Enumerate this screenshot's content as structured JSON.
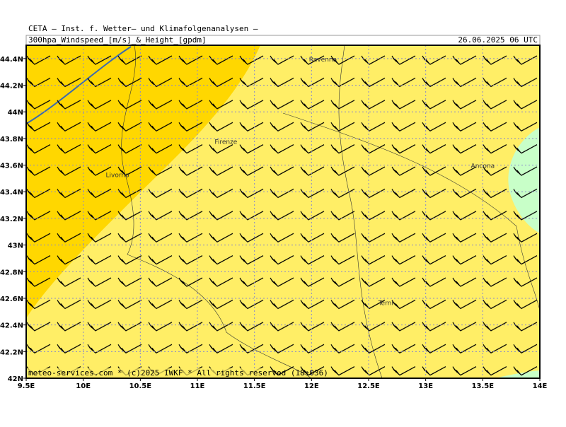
{
  "header": {
    "title": "CETA — Inst. f. Wetter— und Klimafolgenanalysen —",
    "product": "300hpa_Windspeed_[m/s]_&_Height_[gpdm]",
    "valid": "26.06.2025 06 UTC"
  },
  "map": {
    "xlim": [
      9.5,
      14
    ],
    "ylim": [
      42,
      44.5
    ],
    "xticks": [
      {
        "value": 9.5,
        "label": "9.5E"
      },
      {
        "value": 10,
        "label": "10E"
      },
      {
        "value": 10.5,
        "label": "10.5E"
      },
      {
        "value": 11,
        "label": "11E"
      },
      {
        "value": 11.5,
        "label": "11.5E"
      },
      {
        "value": 12,
        "label": "12E"
      },
      {
        "value": 12.5,
        "label": "12.5E"
      },
      {
        "value": 13,
        "label": "13E"
      },
      {
        "value": 13.5,
        "label": "13.5E"
      },
      {
        "value": 14,
        "label": "14E"
      }
    ],
    "yticks": [
      {
        "value": 42,
        "label": "42N"
      },
      {
        "value": 42.2,
        "label": "42.2N"
      },
      {
        "value": 42.4,
        "label": "42.4N"
      },
      {
        "value": 42.6,
        "label": "42.6N"
      },
      {
        "value": 42.8,
        "label": "42.8N"
      },
      {
        "value": 43,
        "label": "43N"
      },
      {
        "value": 43.2,
        "label": "43.2N"
      },
      {
        "value": 43.4,
        "label": "43.4N"
      },
      {
        "value": 43.6,
        "label": "43.6N"
      },
      {
        "value": 43.8,
        "label": "43.8N"
      },
      {
        "value": 44,
        "label": "44N"
      },
      {
        "value": 44.2,
        "label": "44.2N"
      },
      {
        "value": 44.4,
        "label": "44.4N"
      }
    ],
    "cities": [
      {
        "name": "Ravenna",
        "lon": 12.1,
        "lat": 44.4
      },
      {
        "name": "Firenze",
        "lon": 11.25,
        "lat": 43.78
      },
      {
        "name": "Livorno",
        "lon": 10.3,
        "lat": 43.53
      },
      {
        "name": "Ancona",
        "lon": 13.5,
        "lat": 43.6
      },
      {
        "name": "Terni",
        "lon": 12.65,
        "lat": 42.57
      }
    ],
    "footer": "meteo-services.com * (c)2025 IWKF * All rights reserved (18+036)"
  }
}
